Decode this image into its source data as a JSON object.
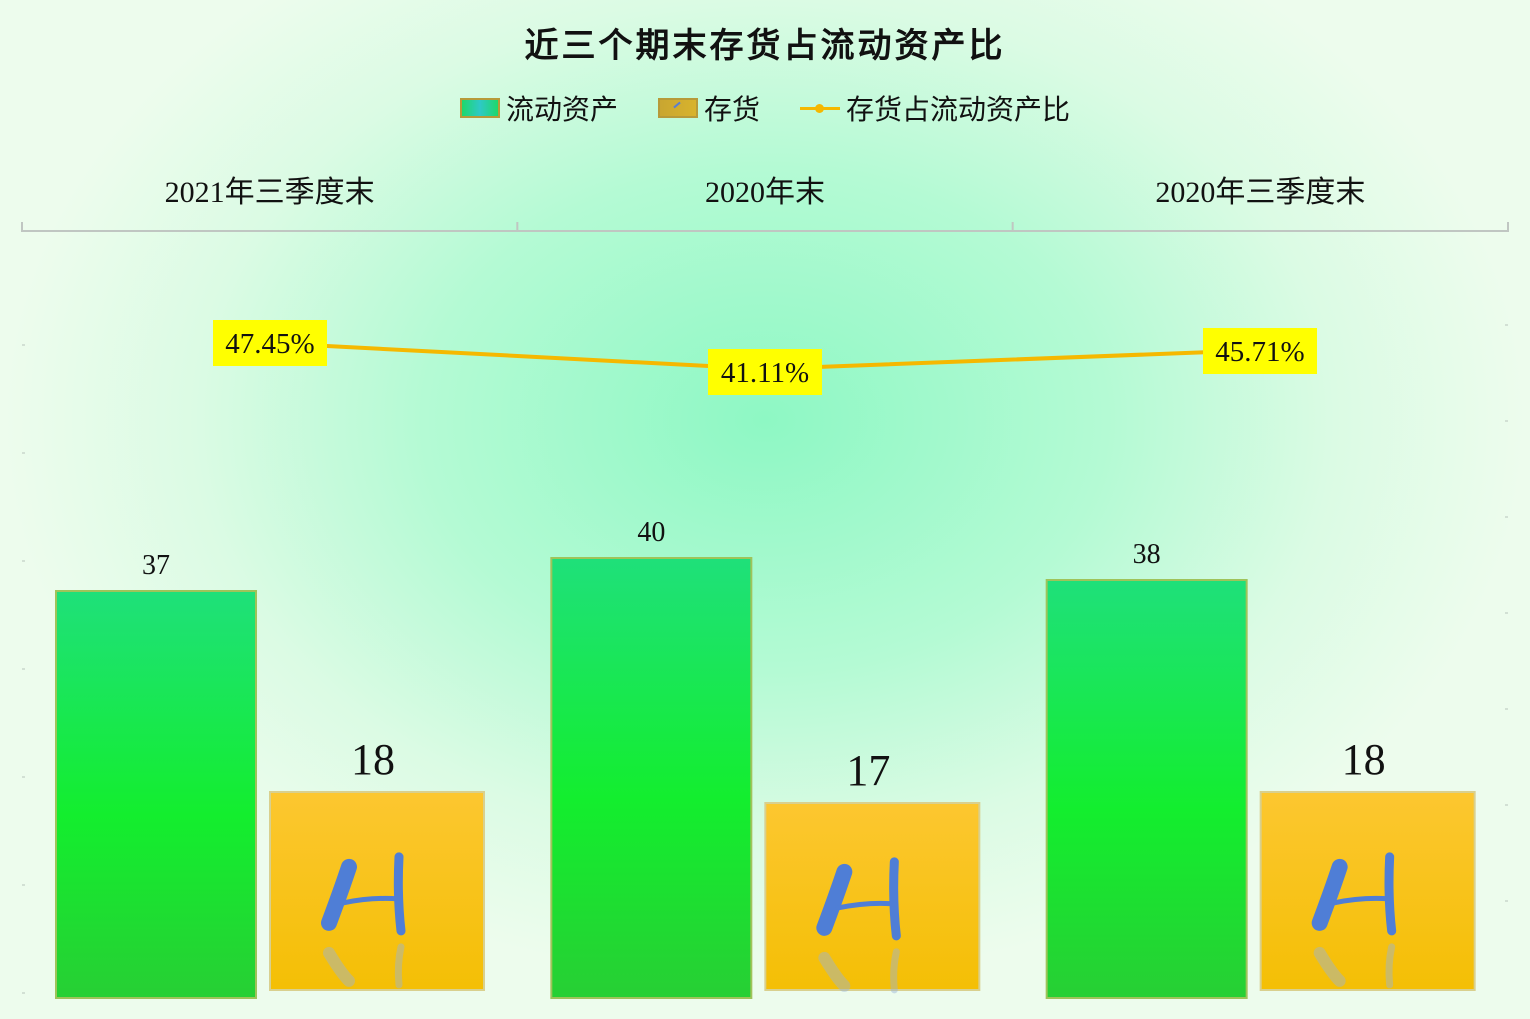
{
  "chart_data": {
    "type": "bar",
    "title": "近三个期末存货占流动资产比",
    "categories": [
      "2021年三季度末",
      "2020年末",
      "2020年三季度末"
    ],
    "series": [
      {
        "name": "流动资产",
        "kind": "bar",
        "values": [
          37,
          40,
          38
        ],
        "color": "#19e35a"
      },
      {
        "name": "存货",
        "kind": "bar",
        "values": [
          18,
          17,
          18
        ],
        "color": "#f9c41b"
      },
      {
        "name": "存货占流动资产比",
        "kind": "line",
        "values": [
          47.45,
          41.11,
          45.71
        ],
        "labels": [
          "47.45%",
          "41.11%",
          "45.71%"
        ],
        "color": "#f5b800"
      }
    ],
    "data_labels": {
      "流动资产": [
        "37",
        "40",
        "38"
      ],
      "存货": [
        "18",
        "17",
        "18"
      ]
    },
    "axis_position": "top",
    "legend_position": "top",
    "label_background": "#ffff00"
  }
}
